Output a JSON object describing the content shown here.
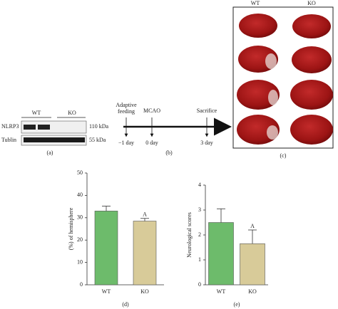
{
  "panels": {
    "a": {
      "label": "(a)",
      "column_labels": [
        "WT",
        "KO"
      ],
      "row_labels": [
        "NLRP3",
        "Tublin"
      ],
      "sizes": [
        "110 kDa",
        "55 kDa"
      ]
    },
    "b": {
      "label": "(b)",
      "events": [
        {
          "name": "Adaptive feeding",
          "time": "−1 day"
        },
        {
          "name": "MCAO",
          "time": "0 day"
        },
        {
          "name": "Sacrifice",
          "time": "3 day"
        }
      ]
    },
    "c": {
      "label": "(c)",
      "column_labels": [
        "WT",
        "KO"
      ]
    }
  },
  "chart_data": [
    {
      "type": "bar",
      "panel_label": "(d)",
      "y_label": "(%) of hemisphere",
      "categories": [
        "WT",
        "KO"
      ],
      "values": [
        33,
        28.5
      ],
      "errors": [
        2.2,
        1.2
      ],
      "colors": [
        "#6dbb6b",
        "#d8cb99"
      ],
      "ylim": [
        0,
        50
      ],
      "yticks": [
        0,
        10,
        20,
        30,
        40,
        50
      ],
      "annotations": [
        {
          "category": "KO",
          "text": "A"
        }
      ]
    },
    {
      "type": "bar",
      "panel_label": "(e)",
      "y_label": "Neurological scores",
      "categories": [
        "WT",
        "KO"
      ],
      "values": [
        2.5,
        1.65
      ],
      "errors": [
        0.55,
        0.55
      ],
      "colors": [
        "#6dbb6b",
        "#d8cb99"
      ],
      "ylim": [
        0,
        4
      ],
      "yticks": [
        0,
        1,
        2,
        3,
        4
      ],
      "annotations": [
        {
          "category": "KO",
          "text": "A"
        }
      ]
    }
  ]
}
